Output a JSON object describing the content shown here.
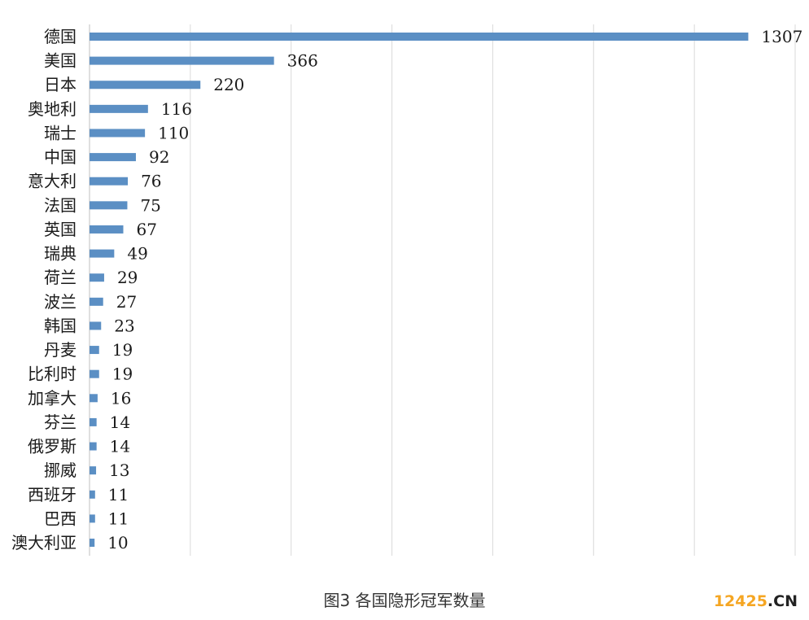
{
  "chart_data": {
    "type": "bar",
    "orientation": "horizontal",
    "categories": [
      "德国",
      "美国",
      "日本",
      "奥地利",
      "瑞士",
      "中国",
      "意大利",
      "法国",
      "英国",
      "瑞典",
      "荷兰",
      "波兰",
      "韩国",
      "丹麦",
      "比利时",
      "加拿大",
      "芬兰",
      "俄罗斯",
      "挪威",
      "西班牙",
      "巴西",
      "澳大利亚"
    ],
    "values": [
      1307,
      366,
      220,
      116,
      110,
      92,
      76,
      75,
      67,
      49,
      29,
      27,
      23,
      19,
      19,
      16,
      14,
      14,
      13,
      11,
      11,
      10
    ],
    "xlim": [
      0,
      1400
    ],
    "grid": true,
    "bar_color": "#5b8fc4",
    "data_labels": true
  },
  "caption": "图3  各国隐形冠军数量",
  "watermark": {
    "number": "12425",
    "domain": ".CN"
  }
}
